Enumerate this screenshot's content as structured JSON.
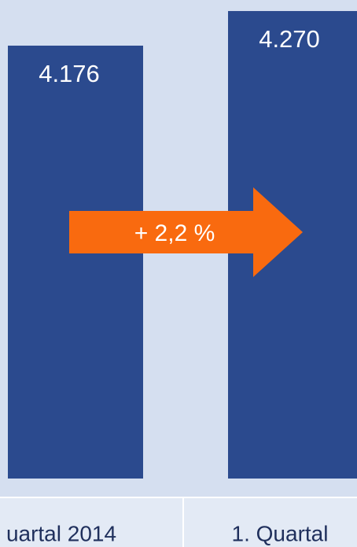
{
  "chart_data": {
    "type": "bar",
    "categories": [
      "uartal 2014",
      "1. Quartal"
    ],
    "values": [
      4176,
      4270
    ],
    "value_labels": [
      "4.176",
      "4.270"
    ],
    "color": "#2b4a8e",
    "ylim": [
      3000,
      4300
    ],
    "annotation": "+ 2,2 %",
    "annotation_color": "#f96a0f"
  }
}
